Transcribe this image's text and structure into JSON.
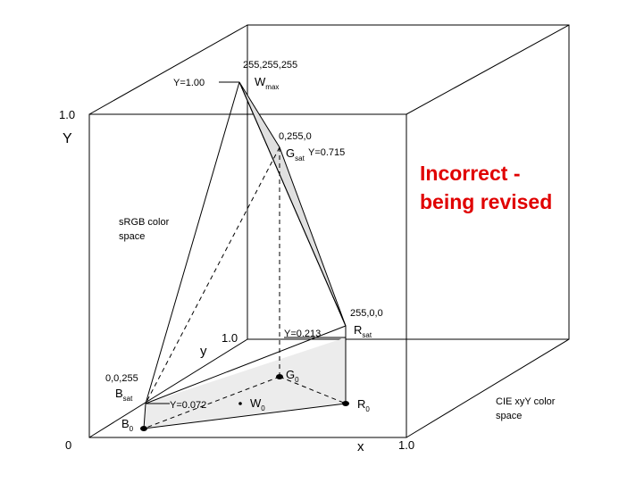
{
  "title": {
    "line1": "Incorrect -",
    "line2": "being revised"
  },
  "axes": {
    "y_top": "1.0",
    "y_label": "Y",
    "y_inner": "1.0",
    "y_inner_label": "y",
    "origin": "0",
    "x_label": "x",
    "x_end": "1.0"
  },
  "regions": {
    "srgb": [
      "sRGB color",
      "space"
    ],
    "cie": [
      "CIE xyY color",
      "space"
    ]
  },
  "points": {
    "w_max": {
      "rgb": "255,255,255",
      "luminance": "Y=1.00",
      "name": "W",
      "sub": "max"
    },
    "g_sat": {
      "rgb": "0,255,0",
      "luminance": "Y=0.715",
      "name": "G",
      "sub": "sat"
    },
    "r_sat": {
      "rgb": "255,0,0",
      "luminance": "Y=0.213",
      "name": "R",
      "sub": "sat"
    },
    "b_sat": {
      "rgb": "0,0,255",
      "luminance": "Y=0.072",
      "name": "B",
      "sub": "sat"
    },
    "g_0": {
      "name": "G",
      "sub": "0"
    },
    "w_0": {
      "name": "W",
      "sub": "0"
    },
    "r_0": {
      "name": "R",
      "sub": "0"
    },
    "b_0": {
      "name": "B",
      "sub": "0"
    }
  }
}
